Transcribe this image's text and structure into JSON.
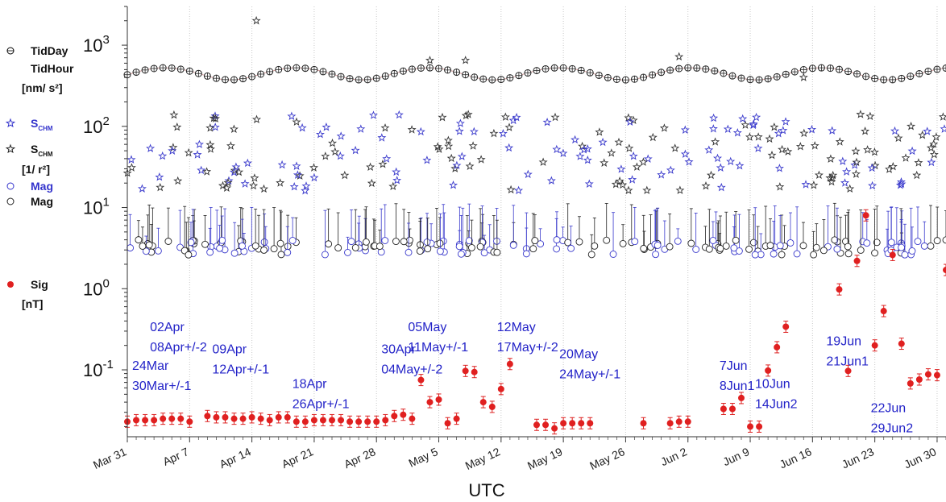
{
  "chart_data": {
    "type": "scatter",
    "xlabel": "UTC",
    "yscale": "log",
    "ylim": [
      0.015,
      3000
    ],
    "y_ticks": [
      {
        "value": 0.1,
        "base": "10",
        "exp": "-1"
      },
      {
        "value": 1,
        "base": "10",
        "exp": "0"
      },
      {
        "value": 10,
        "base": "10",
        "exp": "1"
      },
      {
        "value": 100,
        "base": "10",
        "exp": "2"
      },
      {
        "value": 1000,
        "base": "10",
        "exp": "3"
      }
    ],
    "xlim": [
      "2022-03-31",
      "2022-07-01"
    ],
    "x_ticks": [
      {
        "date": "2022-03-31",
        "label": "Mar 31"
      },
      {
        "date": "2022-04-07",
        "label": "Apr 7"
      },
      {
        "date": "2022-04-14",
        "label": "Apr 14"
      },
      {
        "date": "2022-04-21",
        "label": "Apr 21"
      },
      {
        "date": "2022-04-28",
        "label": "Apr 28"
      },
      {
        "date": "2022-05-05",
        "label": "May 5"
      },
      {
        "date": "2022-05-12",
        "label": "May 12"
      },
      {
        "date": "2022-05-19",
        "label": "May 19"
      },
      {
        "date": "2022-05-26",
        "label": "May 26"
      },
      {
        "date": "2022-06-02",
        "label": "Jun 2"
      },
      {
        "date": "2022-06-09",
        "label": "Jun 9"
      },
      {
        "date": "2022-06-16",
        "label": "Jun 16"
      },
      {
        "date": "2022-06-23",
        "label": "Jun 23"
      },
      {
        "date": "2022-06-30",
        "label": "Jun 30"
      }
    ],
    "grid": "vertical-dotted",
    "legend": {
      "position": "left",
      "groups": [
        {
          "entries": [
            {
              "label": "TidDay",
              "marker": "circle-plus",
              "color": "#000000"
            },
            {
              "label": "TidHour",
              "marker": "none",
              "color": "#000000"
            }
          ],
          "unit": "[nm/ s²]"
        },
        {
          "entries": [
            {
              "label": "S",
              "sub": "CHM",
              "marker": "star",
              "color": "#3333cc"
            },
            {
              "label": "S",
              "sub": "CHM",
              "marker": "star",
              "color": "#222222"
            }
          ],
          "unit": "[1/ r²]"
        },
        {
          "entries": [
            {
              "label": "Mag",
              "marker": "open-circle",
              "color": "#3333cc"
            },
            {
              "label": "Mag",
              "marker": "open-circle",
              "color": "#222222"
            }
          ],
          "unit": ""
        },
        {
          "entries": [
            {
              "label": "Sig",
              "marker": "filled-circle",
              "color": "#e02020"
            }
          ],
          "unit": "[nT]"
        }
      ]
    },
    "series": [
      {
        "name": "Sig",
        "unit": "nT",
        "color": "#e02020",
        "points": [
          {
            "x": "2022-03-31",
            "y": 0.023
          },
          {
            "x": "2022-04-01",
            "y": 0.024
          },
          {
            "x": "2022-04-02",
            "y": 0.024
          },
          {
            "x": "2022-04-03",
            "y": 0.024
          },
          {
            "x": "2022-04-04",
            "y": 0.025
          },
          {
            "x": "2022-04-05",
            "y": 0.025
          },
          {
            "x": "2022-04-06",
            "y": 0.025
          },
          {
            "x": "2022-04-07",
            "y": 0.023
          },
          {
            "x": "2022-04-09",
            "y": 0.027
          },
          {
            "x": "2022-04-10",
            "y": 0.026
          },
          {
            "x": "2022-04-11",
            "y": 0.026
          },
          {
            "x": "2022-04-12",
            "y": 0.025
          },
          {
            "x": "2022-04-13",
            "y": 0.025
          },
          {
            "x": "2022-04-14",
            "y": 0.026
          },
          {
            "x": "2022-04-15",
            "y": 0.025
          },
          {
            "x": "2022-04-16",
            "y": 0.024
          },
          {
            "x": "2022-04-17",
            "y": 0.026
          },
          {
            "x": "2022-04-18",
            "y": 0.026
          },
          {
            "x": "2022-04-19",
            "y": 0.023
          },
          {
            "x": "2022-04-20",
            "y": 0.023
          },
          {
            "x": "2022-04-21",
            "y": 0.024
          },
          {
            "x": "2022-04-22",
            "y": 0.024
          },
          {
            "x": "2022-04-23",
            "y": 0.024
          },
          {
            "x": "2022-04-24",
            "y": 0.024
          },
          {
            "x": "2022-04-25",
            "y": 0.023
          },
          {
            "x": "2022-04-26",
            "y": 0.023
          },
          {
            "x": "2022-04-27",
            "y": 0.023
          },
          {
            "x": "2022-04-28",
            "y": 0.023
          },
          {
            "x": "2022-04-29",
            "y": 0.024
          },
          {
            "x": "2022-04-30",
            "y": 0.027
          },
          {
            "x": "2022-05-01",
            "y": 0.028
          },
          {
            "x": "2022-05-02",
            "y": 0.025
          },
          {
            "x": "2022-05-03",
            "y": 0.075
          },
          {
            "x": "2022-05-04",
            "y": 0.04
          },
          {
            "x": "2022-05-05",
            "y": 0.043
          },
          {
            "x": "2022-05-06",
            "y": 0.022
          },
          {
            "x": "2022-05-07",
            "y": 0.025
          },
          {
            "x": "2022-05-08",
            "y": 0.097
          },
          {
            "x": "2022-05-09",
            "y": 0.094
          },
          {
            "x": "2022-05-10",
            "y": 0.04
          },
          {
            "x": "2022-05-11",
            "y": 0.035
          },
          {
            "x": "2022-05-12",
            "y": 0.058
          },
          {
            "x": "2022-05-13",
            "y": 0.118
          },
          {
            "x": "2022-05-16",
            "y": 0.021
          },
          {
            "x": "2022-05-17",
            "y": 0.021
          },
          {
            "x": "2022-05-18",
            "y": 0.019
          },
          {
            "x": "2022-05-19",
            "y": 0.022
          },
          {
            "x": "2022-05-20",
            "y": 0.022
          },
          {
            "x": "2022-05-21",
            "y": 0.022
          },
          {
            "x": "2022-05-22",
            "y": 0.022
          },
          {
            "x": "2022-05-28",
            "y": 0.022
          },
          {
            "x": "2022-05-31",
            "y": 0.022
          },
          {
            "x": "2022-06-01",
            "y": 0.023
          },
          {
            "x": "2022-06-02",
            "y": 0.023
          },
          {
            "x": "2022-06-06",
            "y": 0.033
          },
          {
            "x": "2022-06-07",
            "y": 0.033
          },
          {
            "x": "2022-06-08",
            "y": 0.045
          },
          {
            "x": "2022-06-09",
            "y": 0.02
          },
          {
            "x": "2022-06-10",
            "y": 0.02
          },
          {
            "x": "2022-06-11",
            "y": 0.098
          },
          {
            "x": "2022-06-12",
            "y": 0.19
          },
          {
            "x": "2022-06-13",
            "y": 0.34
          },
          {
            "x": "2022-06-19",
            "y": 0.98
          },
          {
            "x": "2022-06-20",
            "y": 0.097
          },
          {
            "x": "2022-06-21",
            "y": 2.2
          },
          {
            "x": "2022-06-22",
            "y": 8.0
          },
          {
            "x": "2022-06-23",
            "y": 0.2
          },
          {
            "x": "2022-06-24",
            "y": 0.53
          },
          {
            "x": "2022-06-25",
            "y": 2.6
          },
          {
            "x": "2022-06-26",
            "y": 0.21
          },
          {
            "x": "2022-06-27",
            "y": 0.068
          },
          {
            "x": "2022-06-28",
            "y": 0.076
          },
          {
            "x": "2022-06-29",
            "y": 0.088
          },
          {
            "x": "2022-06-30",
            "y": 0.086
          },
          {
            "x": "2022-07-01",
            "y": 1.7
          }
        ]
      },
      {
        "name": "TidDay",
        "unit": "nm/ s²",
        "color": "#000000",
        "model": {
          "base": 450,
          "amp": 0.17,
          "period_days": 14.77,
          "phase_day": 19.0,
          "step_days": 1
        }
      }
    ]
  },
  "annotations": [
    {
      "lines": [
        "24Mar",
        "30Mar+/-1"
      ],
      "anchor": "2022-03-31",
      "y": 0.1
    },
    {
      "lines": [
        "02Apr",
        "08Apr+/-2"
      ],
      "anchor": "2022-04-02",
      "y": 0.3
    },
    {
      "lines": [
        "09Apr",
        "12Apr+/-1"
      ],
      "anchor": "2022-04-09",
      "y": 0.16
    },
    {
      "lines": [
        "18Apr",
        "26Apr+/-1"
      ],
      "anchor": "2022-04-18",
      "y": 0.06
    },
    {
      "lines": [
        "30Apr",
        "04May+/-2"
      ],
      "anchor": "2022-04-28",
      "y": 0.16
    },
    {
      "lines": [
        "05May",
        "11May+/-1"
      ],
      "anchor": "2022-05-01",
      "y": 0.3
    },
    {
      "lines": [
        "12May",
        "17May+/-2"
      ],
      "anchor": "2022-05-11",
      "y": 0.3
    },
    {
      "lines": [
        "20May",
        "24May+/-1"
      ],
      "anchor": "2022-05-18",
      "y": 0.14
    },
    {
      "lines": [
        "7Jun",
        "8Jun1"
      ],
      "anchor": "2022-06-05",
      "y": 0.1
    },
    {
      "lines": [
        "10Jun",
        "14Jun2"
      ],
      "anchor": "2022-06-09",
      "y": 0.06
    },
    {
      "lines": [
        "19Jun",
        "21Jun1"
      ],
      "anchor": "2022-06-17",
      "y": 0.2
    },
    {
      "lines": [
        "22Jun",
        "29Jun2"
      ],
      "anchor": "2022-06-22",
      "y": 0.03
    }
  ]
}
